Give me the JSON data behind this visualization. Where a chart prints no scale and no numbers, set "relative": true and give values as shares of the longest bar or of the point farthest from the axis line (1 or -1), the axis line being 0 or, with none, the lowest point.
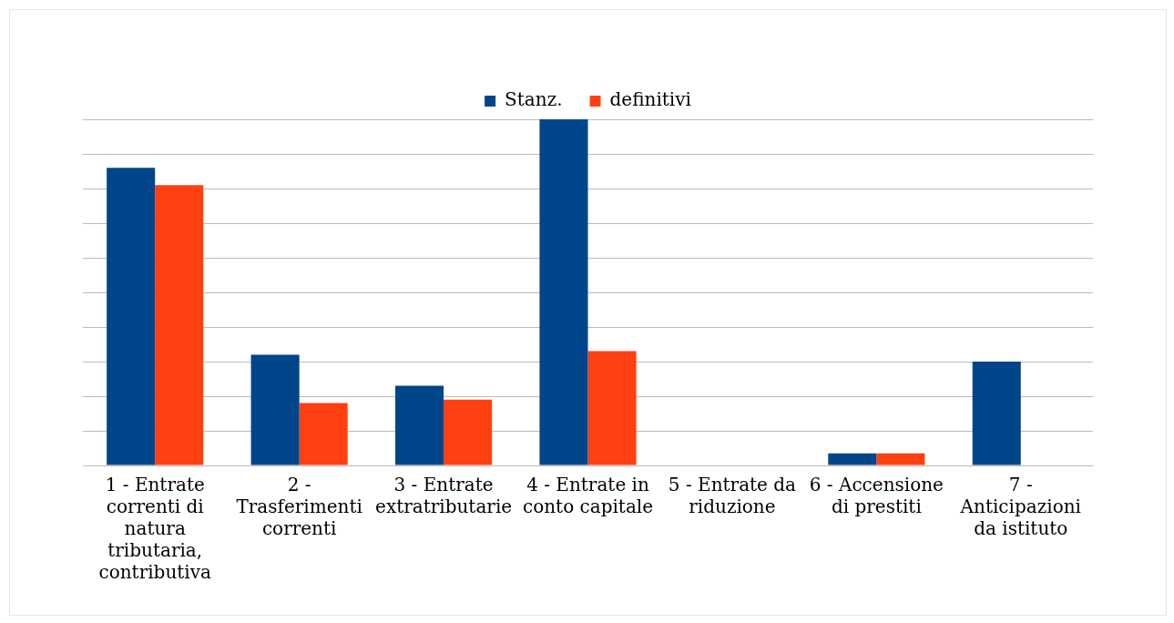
{
  "chart_data": {
    "type": "bar",
    "relative": true,
    "grid": "y",
    "legend": "top",
    "categories": [
      "1 - Entrate correnti di natura tributaria, contributiva",
      "2 - Trasferimenti correnti",
      "3 - Entrate extratributarie",
      "4 - Entrate in conto capitale",
      "5 - Entrate da riduzione",
      "6 - Accensione di prestiti",
      "7 - Anticipazioni da istituto"
    ],
    "series": [
      {
        "name": "Stanz.",
        "color": "#00458a",
        "values": [
          0.86,
          0.32,
          0.23,
          1,
          0,
          0.035,
          0.3
        ]
      },
      {
        "name": "definitivi",
        "color": "#ff4010",
        "values": [
          0.81,
          0.18,
          0.19,
          0.33,
          0,
          0.035,
          0
        ]
      }
    ]
  }
}
